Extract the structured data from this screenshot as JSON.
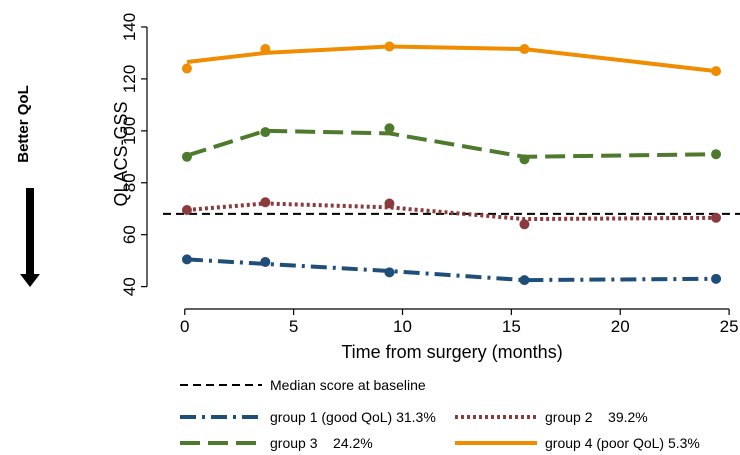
{
  "chart_data": {
    "type": "line",
    "xlabel": "Time from surgery (months)",
    "ylabel": "QLACS-GSS",
    "xlim": [
      -1,
      25.5
    ],
    "ylim": [
      36,
      145
    ],
    "xticks": [
      0,
      5,
      10,
      15,
      20,
      25
    ],
    "yticks": [
      40,
      60,
      80,
      100,
      120,
      140
    ],
    "side_annotation": "Better QoL",
    "reference_line": {
      "name": "Median score at baseline",
      "y": 68,
      "color": "#000000"
    },
    "series": [
      {
        "name": "group 1 (good QoL) 31.3%",
        "color": "#1f4e79",
        "dash": "dashdot",
        "points": [
          [
            0.1,
            50.5
          ],
          [
            3.7,
            49.5
          ],
          [
            9.4,
            45.5
          ],
          [
            15.6,
            42.5
          ],
          [
            24.4,
            43
          ]
        ],
        "line": [
          [
            0.1,
            50.5
          ],
          [
            9.4,
            46
          ],
          [
            15.6,
            42.5
          ],
          [
            24.4,
            43
          ]
        ]
      },
      {
        "name": "group 2    39.2%",
        "color": "#8b3a3e",
        "dash": "dotted",
        "points": [
          [
            0.1,
            69.5
          ],
          [
            3.7,
            72.5
          ],
          [
            9.4,
            72
          ],
          [
            15.6,
            64
          ],
          [
            24.4,
            66.5
          ]
        ],
        "line": [
          [
            0.1,
            69.5
          ],
          [
            3.7,
            72
          ],
          [
            9.4,
            70.5
          ],
          [
            15.6,
            66
          ],
          [
            24.4,
            66.5
          ]
        ]
      },
      {
        "name": "group 3    24.2%",
        "color": "#4e7a2e",
        "dash": "dashed",
        "points": [
          [
            0.1,
            90
          ],
          [
            3.7,
            99.5
          ],
          [
            9.4,
            101
          ],
          [
            15.6,
            89
          ],
          [
            24.4,
            91
          ]
        ],
        "line": [
          [
            0.1,
            90.5
          ],
          [
            3.7,
            100
          ],
          [
            9.4,
            99
          ],
          [
            15.6,
            90
          ],
          [
            24.4,
            91
          ]
        ]
      },
      {
        "name": "group 4 (poor QoL) 5.3%",
        "color": "#f08c00",
        "dash": "solid",
        "points": [
          [
            0.1,
            124
          ],
          [
            3.7,
            131.5
          ],
          [
            9.4,
            132.5
          ],
          [
            15.6,
            131.5
          ],
          [
            24.4,
            123
          ]
        ],
        "line": [
          [
            0.1,
            126.5
          ],
          [
            3.7,
            130
          ],
          [
            9.4,
            132.5
          ],
          [
            15.6,
            131.5
          ],
          [
            24.4,
            123
          ]
        ]
      }
    ],
    "legend_position": "bottom"
  }
}
